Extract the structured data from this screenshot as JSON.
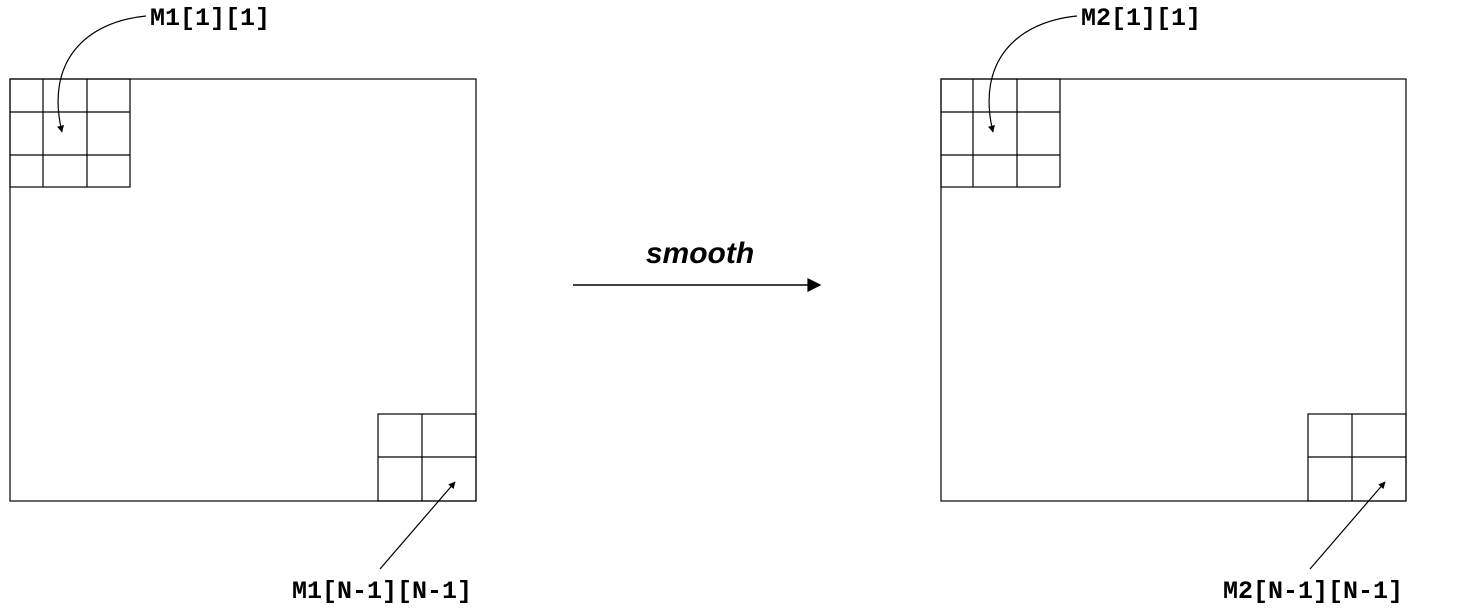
{
  "diagram": {
    "left_matrix": {
      "top_label": "M1[1][1]",
      "bottom_label": "M1[N-1][N-1]"
    },
    "right_matrix": {
      "top_label": "M2[1][1]",
      "bottom_label": "M2[N-1][N-1]"
    },
    "operation_label": "smooth",
    "colors": {
      "stroke": "#000000",
      "background": "#ffffff"
    }
  }
}
